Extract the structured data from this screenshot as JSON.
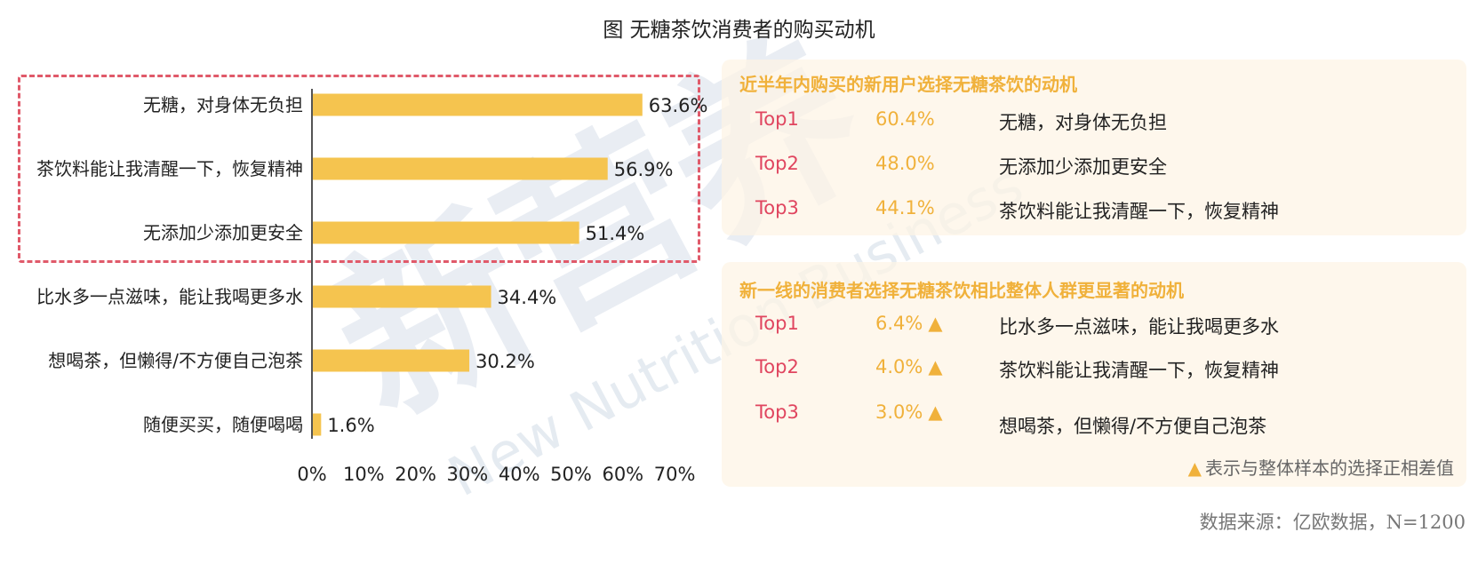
{
  "title": "图 无糖茶饮消费者的购买动机",
  "watermark": {
    "main": "新营养",
    "sub": "New Nutrition Business"
  },
  "chart_data": {
    "type": "bar",
    "orientation": "horizontal",
    "categories": [
      "无糖，对身体无负担",
      "茶饮料能让我清醒一下，恢复精神",
      "无添加少添加更安全",
      "比水多一点滋味，能让我喝更多水",
      "想喝茶，但懒得/不方便自己泡茶",
      "随便买买，随便喝喝"
    ],
    "values": [
      63.6,
      56.9,
      51.4,
      34.4,
      30.2,
      1.6
    ],
    "value_labels": [
      "63.6%",
      "56.9%",
      "51.4%",
      "34.4%",
      "30.2%",
      "1.6%"
    ],
    "xlim": [
      0,
      70
    ],
    "x_ticks": [
      "0%",
      "10%",
      "20%",
      "30%",
      "40%",
      "50%",
      "60%",
      "70%"
    ],
    "bar_color": "#f5c44f",
    "highlight_color": "#e05a6a",
    "grid": false
  },
  "panel_new_users": {
    "title": "近半年内购买的新用户选择无糖茶饮的动机",
    "rows": [
      {
        "rank": "Top1",
        "pct": "60.4%",
        "reason": "无糖，对身体无负担"
      },
      {
        "rank": "Top2",
        "pct": "48.0%",
        "reason": "无添加少添加更安全"
      },
      {
        "rank": "Top3",
        "pct": "44.1%",
        "reason": "茶饮料能让我清醒一下，恢复精神"
      }
    ]
  },
  "panel_new_tier1": {
    "title": "新一线的消费者选择无糖茶饮相比整体人群更显著的动机",
    "triangle": "▲",
    "rows": [
      {
        "rank": "Top1",
        "pct": "6.4%",
        "reason": "比水多一点滋味，能让我喝更多水"
      },
      {
        "rank": "Top2",
        "pct": "4.0%",
        "reason": "茶饮料能让我清醒一下，恢复精神"
      },
      {
        "rank": "Top3",
        "pct": "3.0%",
        "reason": "想喝茶，但懒得/不方便自己泡茶"
      }
    ],
    "note": "表示与整体样本的选择正相差值"
  },
  "source": "数据来源：亿欧数据，N=1200",
  "colors": {
    "rank": "#e0455f",
    "accent": "#f0b13b",
    "panel_bg": "#fdf4e4"
  }
}
